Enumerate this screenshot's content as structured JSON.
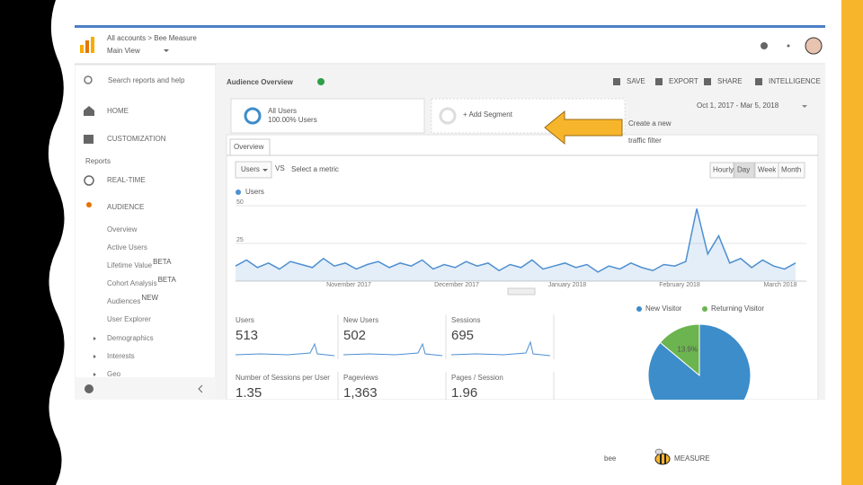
{
  "header": {
    "breadcrumb": "All accounts > Bee Measure",
    "view": "Main View"
  },
  "sidebar": {
    "search": "Search reports and help",
    "items": [
      "HOME",
      "CUSTOMIZATION"
    ],
    "reports": "Reports",
    "sections": [
      "REAL-TIME",
      "AUDIENCE"
    ],
    "audience_items": [
      {
        "label": "Overview"
      },
      {
        "label": "Active Users"
      },
      {
        "label": "Lifetime Value",
        "badge": "BETA"
      },
      {
        "label": "Cohort Analysis",
        "badge": "BETA"
      },
      {
        "label": "Audiences",
        "badge": "NEW"
      },
      {
        "label": "User Explorer"
      }
    ],
    "groups": [
      "Demographics",
      "Interests",
      "Geo"
    ]
  },
  "report": {
    "title": "Audience Overview",
    "actions": [
      "SAVE",
      "EXPORT",
      "SHARE",
      "INTELLIGENCE"
    ],
    "date_range": "Oct 1, 2017 - Mar 5, 2018",
    "segment": {
      "name": "All Users",
      "share": "100.00% Users"
    },
    "add_segment": "+ Add Segment",
    "tab": "Overview",
    "metric_select": "Users",
    "vs": "VS",
    "select_metric": "Select a metric",
    "granularity": [
      "Hourly",
      "Day",
      "Week",
      "Month"
    ]
  },
  "users_chart": {
    "type": "line",
    "legend": "Users",
    "color": "#4d8fd1",
    "ylim": [
      0,
      50
    ],
    "yticks": [
      25,
      50
    ],
    "xlabels": [
      "November 2017",
      "December 2017",
      "January 2018",
      "February 2018",
      "March 2018"
    ],
    "values": [
      10,
      14,
      9,
      12,
      8,
      13,
      11,
      9,
      15,
      10,
      12,
      8,
      11,
      13,
      9,
      12,
      10,
      14,
      8,
      11,
      9,
      13,
      10,
      12,
      7,
      11,
      9,
      14,
      8,
      10,
      12,
      9,
      11,
      6,
      10,
      8,
      12,
      9,
      7,
      11,
      10,
      13,
      48,
      18,
      30,
      12,
      15,
      9,
      14,
      10,
      8,
      12
    ]
  },
  "metrics": [
    {
      "label": "Users",
      "value": "513"
    },
    {
      "label": "New Users",
      "value": "502"
    },
    {
      "label": "Sessions",
      "value": "695"
    },
    {
      "label": "Number of Sessions per User",
      "value": "1.35"
    },
    {
      "label": "Pageviews",
      "value": "1,363"
    },
    {
      "label": "Pages / Session",
      "value": "1.96"
    }
  ],
  "visitor_pie": {
    "type": "pie",
    "series": [
      {
        "name": "New Visitor",
        "color": "#3c8dca",
        "value": 86.1
      },
      {
        "name": "Returning Visitor",
        "color": "#6bb44f",
        "value": 13.9,
        "value_label": "13.9%"
      }
    ]
  },
  "callout": {
    "lines": [
      "Create a new",
      "traffic filter"
    ]
  },
  "logo": {
    "left": "bee",
    "right": "MEASURE"
  }
}
